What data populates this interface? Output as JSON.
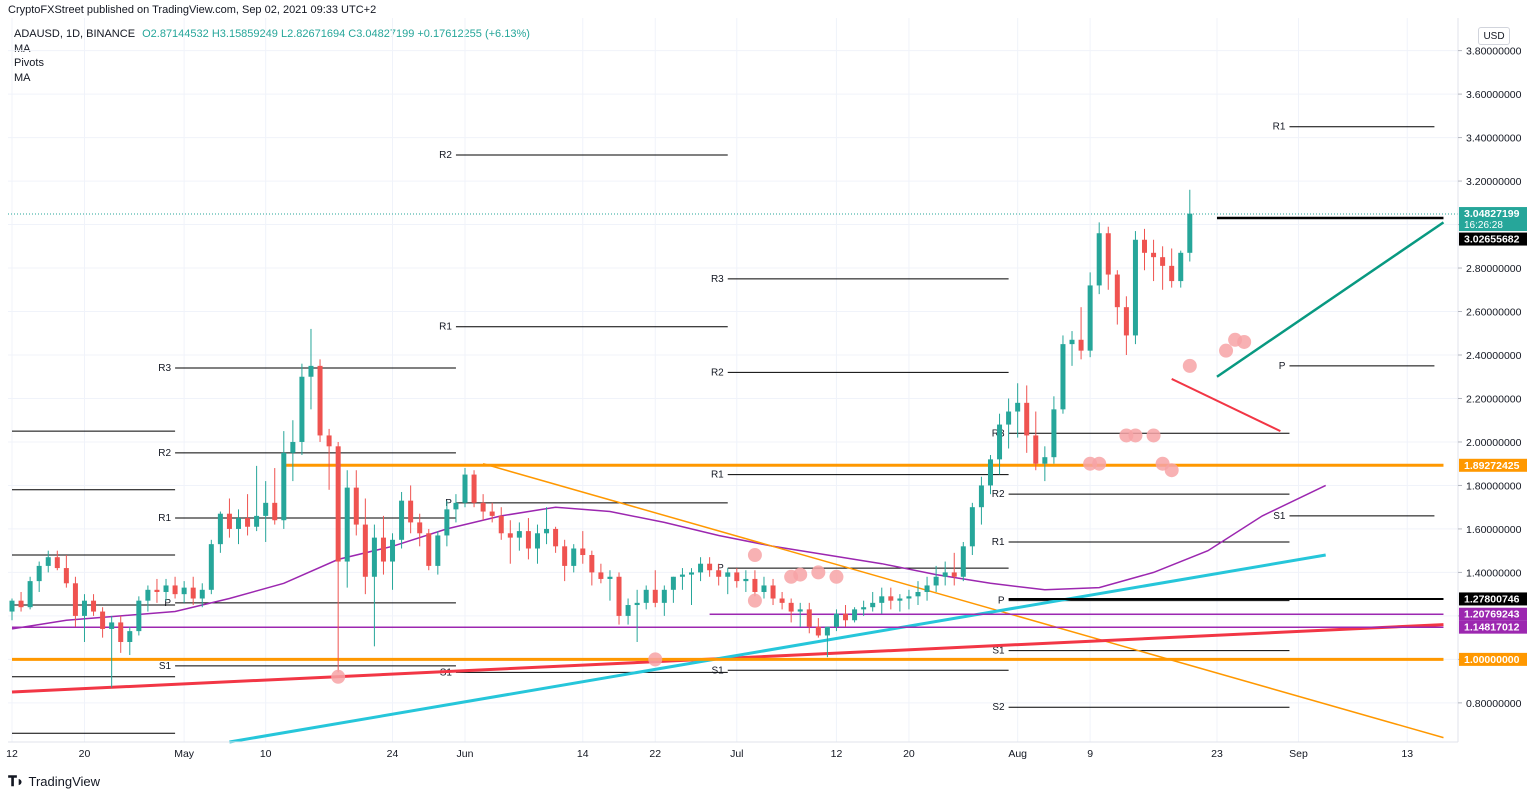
{
  "header": {
    "caption": "CryptoFXStreet published on TradingView.com, Sep 02, 2021 09:33 UTC+2",
    "symbol": "ADAUSD, 1D, BINANCE",
    "o": "O2.87144532",
    "h": "H3.15859249",
    "l": "L2.82671694",
    "c": "C3.04827199",
    "change": "+0.17612255 (+6.13%)",
    "indicators": [
      "MA",
      "Pivots",
      "MA"
    ]
  },
  "axis_currency": "USD",
  "branding": "TradingView",
  "colors": {
    "up": "#26a69a",
    "down": "#ef5350",
    "orange": "#ff9800",
    "purple": "#9c27b0",
    "cyan": "#26c6da",
    "red": "#f23645",
    "teal": "#089981",
    "black": "#000000",
    "grid": "#f0f3fa"
  },
  "chart_data": {
    "type": "candlestick",
    "title": "ADAUSD, 1D, BINANCE",
    "ylim": [
      0.62,
      3.95
    ],
    "y_ticks": [
      "3.80000000",
      "3.60000000",
      "3.40000000",
      "3.20000000",
      "3.00000000",
      "2.80000000",
      "2.60000000",
      "2.40000000",
      "2.20000000",
      "2.00000000",
      "1.80000000",
      "1.60000000",
      "1.40000000",
      "1.20000000",
      "1.00000000",
      "0.80000000"
    ],
    "y_tick_values": [
      3.8,
      3.6,
      3.4,
      3.2,
      3.0,
      2.8,
      2.6,
      2.4,
      2.2,
      2.0,
      1.8,
      1.6,
      1.4,
      1.2,
      1.0,
      0.8
    ],
    "x_ticks": [
      {
        "label": "12",
        "day": 0
      },
      {
        "label": "20",
        "day": 8
      },
      {
        "label": "May",
        "day": 19
      },
      {
        "label": "10",
        "day": 28
      },
      {
        "label": "24",
        "day": 42
      },
      {
        "label": "Jun",
        "day": 50
      },
      {
        "label": "14",
        "day": 63
      },
      {
        "label": "22",
        "day": 71
      },
      {
        "label": "Jul",
        "day": 80
      },
      {
        "label": "12",
        "day": 91
      },
      {
        "label": "20",
        "day": 99
      },
      {
        "label": "Aug",
        "day": 111
      },
      {
        "label": "9",
        "day": 119
      },
      {
        "label": "23",
        "day": 133
      },
      {
        "label": "Sep",
        "day": 142
      },
      {
        "label": "13",
        "day": 154
      }
    ],
    "price_labels": [
      {
        "text": "3.04827199",
        "sub": "16:26:28",
        "value": 3.04827199,
        "bg": "#26a69a"
      },
      {
        "text": "3.02655682",
        "value": 3.02655682,
        "bg": "#000000"
      },
      {
        "text": "1.89272425",
        "value": 1.89272425,
        "bg": "#ff9800"
      },
      {
        "text": "1.27800746",
        "value": 1.27800746,
        "bg": "#000000"
      },
      {
        "text": "1.20769243",
        "value": 1.20769243,
        "bg": "#9c27b0"
      },
      {
        "text": "1.14817012",
        "value": 1.14817012,
        "bg": "#9c27b0"
      },
      {
        "text": "1.00000000",
        "value": 1.0,
        "bg": "#ff9800"
      }
    ],
    "pivots": [
      {
        "label": "R3",
        "value": 2.34,
        "d0": 18,
        "d1": 49
      },
      {
        "label": "R2",
        "value": 1.95,
        "d0": 18,
        "d1": 49
      },
      {
        "label": "R1",
        "value": 1.65,
        "d0": 18,
        "d1": 49
      },
      {
        "label": "P",
        "value": 1.26,
        "d0": 18,
        "d1": 49
      },
      {
        "label": "S1",
        "value": 0.97,
        "d0": 18,
        "d1": 49
      },
      {
        "label": "",
        "value": 2.05,
        "d0": 0,
        "d1": 18
      },
      {
        "label": "",
        "value": 1.78,
        "d0": 0,
        "d1": 18
      },
      {
        "label": "",
        "value": 1.48,
        "d0": 0,
        "d1": 18
      },
      {
        "label": "",
        "value": 1.25,
        "d0": 0,
        "d1": 18
      },
      {
        "label": "",
        "value": 0.92,
        "d0": 0,
        "d1": 18
      },
      {
        "label": "",
        "value": 0.66,
        "d0": 0,
        "d1": 18
      },
      {
        "label": "R2",
        "value": 3.32,
        "d0": 49,
        "d1": 79
      },
      {
        "label": "R1",
        "value": 2.53,
        "d0": 49,
        "d1": 79
      },
      {
        "label": "P",
        "value": 1.72,
        "d0": 49,
        "d1": 79
      },
      {
        "label": "S1",
        "value": 0.94,
        "d0": 49,
        "d1": 79
      },
      {
        "label": "R3",
        "value": 2.75,
        "d0": 79,
        "d1": 110
      },
      {
        "label": "R2",
        "value": 2.32,
        "d0": 79,
        "d1": 110
      },
      {
        "label": "R1",
        "value": 1.85,
        "d0": 79,
        "d1": 110
      },
      {
        "label": "P",
        "value": 1.42,
        "d0": 79,
        "d1": 110
      },
      {
        "label": "S1",
        "value": 0.95,
        "d0": 79,
        "d1": 110
      },
      {
        "label": "R3",
        "value": 2.04,
        "d0": 110,
        "d1": 141
      },
      {
        "label": "R2",
        "value": 1.76,
        "d0": 110,
        "d1": 141
      },
      {
        "label": "R1",
        "value": 1.54,
        "d0": 110,
        "d1": 141
      },
      {
        "label": "P",
        "value": 1.27,
        "d0": 110,
        "d1": 141
      },
      {
        "label": "S1",
        "value": 1.04,
        "d0": 110,
        "d1": 141
      },
      {
        "label": "S2",
        "value": 0.78,
        "d0": 110,
        "d1": 141
      },
      {
        "label": "R1",
        "value": 3.45,
        "d0": 141,
        "d1": 157
      },
      {
        "label": "P",
        "value": 2.35,
        "d0": 141,
        "d1": 157
      },
      {
        "label": "S1",
        "value": 1.66,
        "d0": 141,
        "d1": 157
      }
    ],
    "candles": [
      [
        1.22,
        1.28,
        1.18,
        1.27
      ],
      [
        1.27,
        1.31,
        1.22,
        1.24
      ],
      [
        1.24,
        1.38,
        1.23,
        1.36
      ],
      [
        1.36,
        1.45,
        1.31,
        1.43
      ],
      [
        1.43,
        1.5,
        1.4,
        1.47
      ],
      [
        1.47,
        1.5,
        1.41,
        1.42
      ],
      [
        1.42,
        1.48,
        1.33,
        1.35
      ],
      [
        1.35,
        1.38,
        1.15,
        1.2
      ],
      [
        1.2,
        1.3,
        1.08,
        1.27
      ],
      [
        1.27,
        1.3,
        1.2,
        1.22
      ],
      [
        1.22,
        1.24,
        1.1,
        1.14
      ],
      [
        1.14,
        1.2,
        0.87,
        1.17
      ],
      [
        1.17,
        1.2,
        1.03,
        1.08
      ],
      [
        1.08,
        1.15,
        1.02,
        1.13
      ],
      [
        1.13,
        1.29,
        1.11,
        1.27
      ],
      [
        1.27,
        1.34,
        1.22,
        1.32
      ],
      [
        1.32,
        1.37,
        1.26,
        1.31
      ],
      [
        1.31,
        1.37,
        1.27,
        1.34
      ],
      [
        1.34,
        1.38,
        1.28,
        1.3
      ],
      [
        1.3,
        1.36,
        1.26,
        1.33
      ],
      [
        1.33,
        1.38,
        1.25,
        1.28
      ],
      [
        1.28,
        1.35,
        1.24,
        1.32
      ],
      [
        1.32,
        1.55,
        1.3,
        1.53
      ],
      [
        1.53,
        1.68,
        1.49,
        1.67
      ],
      [
        1.67,
        1.74,
        1.56,
        1.6
      ],
      [
        1.6,
        1.69,
        1.53,
        1.65
      ],
      [
        1.65,
        1.76,
        1.57,
        1.61
      ],
      [
        1.61,
        1.89,
        1.59,
        1.66
      ],
      [
        1.66,
        1.82,
        1.54,
        1.72
      ],
      [
        1.72,
        1.88,
        1.62,
        1.64
      ],
      [
        1.64,
        2.05,
        1.6,
        1.95
      ],
      [
        1.95,
        2.1,
        1.82,
        2.0
      ],
      [
        2.0,
        2.36,
        1.94,
        2.3
      ],
      [
        2.3,
        2.52,
        2.15,
        2.35
      ],
      [
        2.35,
        2.38,
        2.0,
        2.03
      ],
      [
        2.03,
        2.06,
        1.78,
        1.98
      ],
      [
        1.98,
        2.0,
        0.94,
        1.45
      ],
      [
        1.45,
        1.87,
        1.33,
        1.79
      ],
      [
        1.79,
        1.87,
        1.57,
        1.62
      ],
      [
        1.62,
        1.74,
        1.3,
        1.38
      ],
      [
        1.38,
        1.62,
        1.06,
        1.56
      ],
      [
        1.56,
        1.66,
        1.39,
        1.45
      ],
      [
        1.45,
        1.58,
        1.32,
        1.55
      ],
      [
        1.55,
        1.77,
        1.51,
        1.73
      ],
      [
        1.73,
        1.8,
        1.58,
        1.63
      ],
      [
        1.63,
        1.67,
        1.52,
        1.58
      ],
      [
        1.58,
        1.6,
        1.41,
        1.43
      ],
      [
        1.43,
        1.59,
        1.39,
        1.57
      ],
      [
        1.57,
        1.73,
        1.52,
        1.69
      ],
      [
        1.69,
        1.76,
        1.63,
        1.72
      ],
      [
        1.72,
        1.88,
        1.7,
        1.85
      ],
      [
        1.85,
        1.87,
        1.7,
        1.72
      ],
      [
        1.72,
        1.76,
        1.64,
        1.68
      ],
      [
        1.68,
        1.72,
        1.63,
        1.66
      ],
      [
        1.66,
        1.7,
        1.55,
        1.58
      ],
      [
        1.58,
        1.64,
        1.44,
        1.56
      ],
      [
        1.56,
        1.63,
        1.5,
        1.59
      ],
      [
        1.59,
        1.65,
        1.46,
        1.51
      ],
      [
        1.51,
        1.62,
        1.44,
        1.58
      ],
      [
        1.58,
        1.7,
        1.53,
        1.6
      ],
      [
        1.6,
        1.61,
        1.49,
        1.52
      ],
      [
        1.52,
        1.55,
        1.36,
        1.43
      ],
      [
        1.43,
        1.53,
        1.4,
        1.51
      ],
      [
        1.51,
        1.59,
        1.44,
        1.48
      ],
      [
        1.48,
        1.5,
        1.34,
        1.4
      ],
      [
        1.4,
        1.44,
        1.35,
        1.37
      ],
      [
        1.37,
        1.41,
        1.27,
        1.38
      ],
      [
        1.38,
        1.4,
        1.16,
        1.2
      ],
      [
        1.2,
        1.28,
        1.16,
        1.25
      ],
      [
        1.25,
        1.32,
        1.08,
        1.26
      ],
      [
        1.26,
        1.34,
        1.23,
        1.32
      ],
      [
        1.32,
        1.41,
        1.24,
        1.26
      ],
      [
        1.26,
        1.34,
        1.2,
        1.32
      ],
      [
        1.32,
        1.38,
        1.26,
        1.38
      ],
      [
        1.38,
        1.42,
        1.32,
        1.39
      ],
      [
        1.39,
        1.42,
        1.25,
        1.4
      ],
      [
        1.4,
        1.47,
        1.36,
        1.44
      ],
      [
        1.44,
        1.47,
        1.38,
        1.41
      ],
      [
        1.41,
        1.44,
        1.34,
        1.38
      ],
      [
        1.38,
        1.42,
        1.3,
        1.4
      ],
      [
        1.4,
        1.42,
        1.33,
        1.36
      ],
      [
        1.36,
        1.41,
        1.31,
        1.37
      ],
      [
        1.37,
        1.41,
        1.29,
        1.31
      ],
      [
        1.31,
        1.38,
        1.28,
        1.34
      ],
      [
        1.34,
        1.37,
        1.25,
        1.28
      ],
      [
        1.28,
        1.31,
        1.23,
        1.26
      ],
      [
        1.26,
        1.28,
        1.17,
        1.22
      ],
      [
        1.22,
        1.26,
        1.15,
        1.23
      ],
      [
        1.23,
        1.26,
        1.12,
        1.15
      ],
      [
        1.15,
        1.19,
        1.1,
        1.11
      ],
      [
        1.11,
        1.14,
        1.01,
        1.15
      ],
      [
        1.15,
        1.23,
        1.13,
        1.21
      ],
      [
        1.21,
        1.25,
        1.15,
        1.18
      ],
      [
        1.18,
        1.24,
        1.17,
        1.23
      ],
      [
        1.23,
        1.27,
        1.2,
        1.24
      ],
      [
        1.24,
        1.31,
        1.22,
        1.26
      ],
      [
        1.26,
        1.33,
        1.21,
        1.29
      ],
      [
        1.29,
        1.33,
        1.23,
        1.27
      ],
      [
        1.27,
        1.3,
        1.22,
        1.28
      ],
      [
        1.28,
        1.32,
        1.23,
        1.29
      ],
      [
        1.29,
        1.36,
        1.25,
        1.31
      ],
      [
        1.31,
        1.38,
        1.27,
        1.34
      ],
      [
        1.34,
        1.43,
        1.31,
        1.38
      ],
      [
        1.38,
        1.45,
        1.34,
        1.4
      ],
      [
        1.4,
        1.49,
        1.34,
        1.38
      ],
      [
        1.38,
        1.54,
        1.36,
        1.52
      ],
      [
        1.52,
        1.72,
        1.48,
        1.7
      ],
      [
        1.7,
        1.84,
        1.62,
        1.8
      ],
      [
        1.8,
        1.94,
        1.76,
        1.92
      ],
      [
        1.92,
        2.13,
        1.85,
        2.08
      ],
      [
        2.08,
        2.2,
        1.97,
        2.14
      ],
      [
        2.14,
        2.27,
        2.02,
        2.18
      ],
      [
        2.18,
        2.26,
        1.95,
        2.03
      ],
      [
        2.03,
        2.14,
        1.87,
        1.9
      ],
      [
        1.9,
        1.98,
        1.82,
        1.93
      ],
      [
        1.93,
        2.21,
        1.9,
        2.15
      ],
      [
        2.15,
        2.49,
        2.13,
        2.45
      ],
      [
        2.45,
        2.51,
        2.35,
        2.47
      ],
      [
        2.47,
        2.62,
        2.38,
        2.42
      ],
      [
        2.42,
        2.78,
        2.39,
        2.72
      ],
      [
        2.72,
        3.01,
        2.68,
        2.96
      ],
      [
        2.96,
        2.99,
        2.7,
        2.77
      ],
      [
        2.77,
        2.79,
        2.54,
        2.62
      ],
      [
        2.62,
        2.67,
        2.4,
        2.49
      ],
      [
        2.49,
        2.97,
        2.45,
        2.93
      ],
      [
        2.93,
        2.98,
        2.79,
        2.87
      ],
      [
        2.87,
        2.93,
        2.74,
        2.85
      ],
      [
        2.85,
        2.9,
        2.7,
        2.81
      ],
      [
        2.81,
        2.89,
        2.71,
        2.74
      ],
      [
        2.74,
        2.88,
        2.71,
        2.87
      ],
      [
        2.87,
        3.16,
        2.83,
        3.05
      ]
    ],
    "trendlines": [
      {
        "name": "orange-resistance",
        "color": "#ff9800",
        "width": 1.5,
        "d0": 52,
        "v0": 1.9,
        "d1": 158,
        "v1": 0.64
      },
      {
        "name": "red-rising-support",
        "color": "#f23645",
        "width": 3,
        "d0": 0,
        "v0": 0.85,
        "d1": 158,
        "v1": 1.16
      },
      {
        "name": "cyan-ma-200",
        "color": "#26c6da",
        "width": 3,
        "d0": 24,
        "v0": 0.62,
        "d1": 145,
        "v1": 1.48
      },
      {
        "name": "teal-ascending",
        "color": "#089981",
        "width": 2.5,
        "d0": 133,
        "v0": 2.3,
        "d1": 158,
        "v1": 3.01
      },
      {
        "name": "red-falling",
        "color": "#f23645",
        "width": 2,
        "d0": 128,
        "v0": 2.29,
        "d1": 140,
        "v1": 2.05
      },
      {
        "name": "black-top",
        "color": "#000000",
        "width": 2.5,
        "d0": 133,
        "v0": 3.03,
        "d1": 158,
        "v1": 3.03
      },
      {
        "name": "black-1.278",
        "color": "#000000",
        "width": 2,
        "d0": 110,
        "v0": 1.278,
        "d1": 158,
        "v1": 1.278
      },
      {
        "name": "orange-1.89",
        "color": "#ff9800",
        "width": 3,
        "d0": 30,
        "v0": 1.8927,
        "d1": 158,
        "v1": 1.8927
      },
      {
        "name": "orange-1.00",
        "color": "#ff9800",
        "width": 3,
        "d0": 0,
        "v0": 1.0,
        "d1": 158,
        "v1": 1.0
      },
      {
        "name": "purple-1.207",
        "color": "#9c27b0",
        "width": 1.5,
        "d0": 77,
        "v0": 1.2077,
        "d1": 158,
        "v1": 1.2077
      },
      {
        "name": "purple-1.148",
        "color": "#9c27b0",
        "width": 1.5,
        "d0": 0,
        "v0": 1.148,
        "d1": 158,
        "v1": 1.148
      }
    ],
    "ma_50": [
      [
        0,
        1.14
      ],
      [
        6,
        1.18
      ],
      [
        12,
        1.2
      ],
      [
        18,
        1.22
      ],
      [
        24,
        1.28
      ],
      [
        30,
        1.35
      ],
      [
        36,
        1.46
      ],
      [
        42,
        1.52
      ],
      [
        48,
        1.6
      ],
      [
        54,
        1.66
      ],
      [
        60,
        1.7
      ],
      [
        66,
        1.68
      ],
      [
        72,
        1.63
      ],
      [
        78,
        1.57
      ],
      [
        84,
        1.52
      ],
      [
        90,
        1.48
      ],
      [
        96,
        1.44
      ],
      [
        102,
        1.39
      ],
      [
        108,
        1.35
      ],
      [
        114,
        1.32
      ],
      [
        120,
        1.33
      ],
      [
        126,
        1.4
      ],
      [
        132,
        1.5
      ],
      [
        138,
        1.66
      ],
      [
        145,
        1.8
      ]
    ],
    "highlight_circles": [
      [
        36,
        0.92
      ],
      [
        71,
        1.0
      ],
      [
        82,
        1.48
      ],
      [
        82,
        1.27
      ],
      [
        86,
        1.38
      ],
      [
        87,
        1.39
      ],
      [
        89,
        1.4
      ],
      [
        91,
        1.38
      ],
      [
        119,
        1.9
      ],
      [
        120,
        1.9
      ],
      [
        123,
        2.03
      ],
      [
        124,
        2.03
      ],
      [
        126,
        2.03
      ],
      [
        127,
        1.9
      ],
      [
        128,
        1.87
      ],
      [
        130,
        2.35
      ],
      [
        134,
        2.42
      ],
      [
        135,
        2.47
      ],
      [
        136,
        2.46
      ]
    ]
  }
}
